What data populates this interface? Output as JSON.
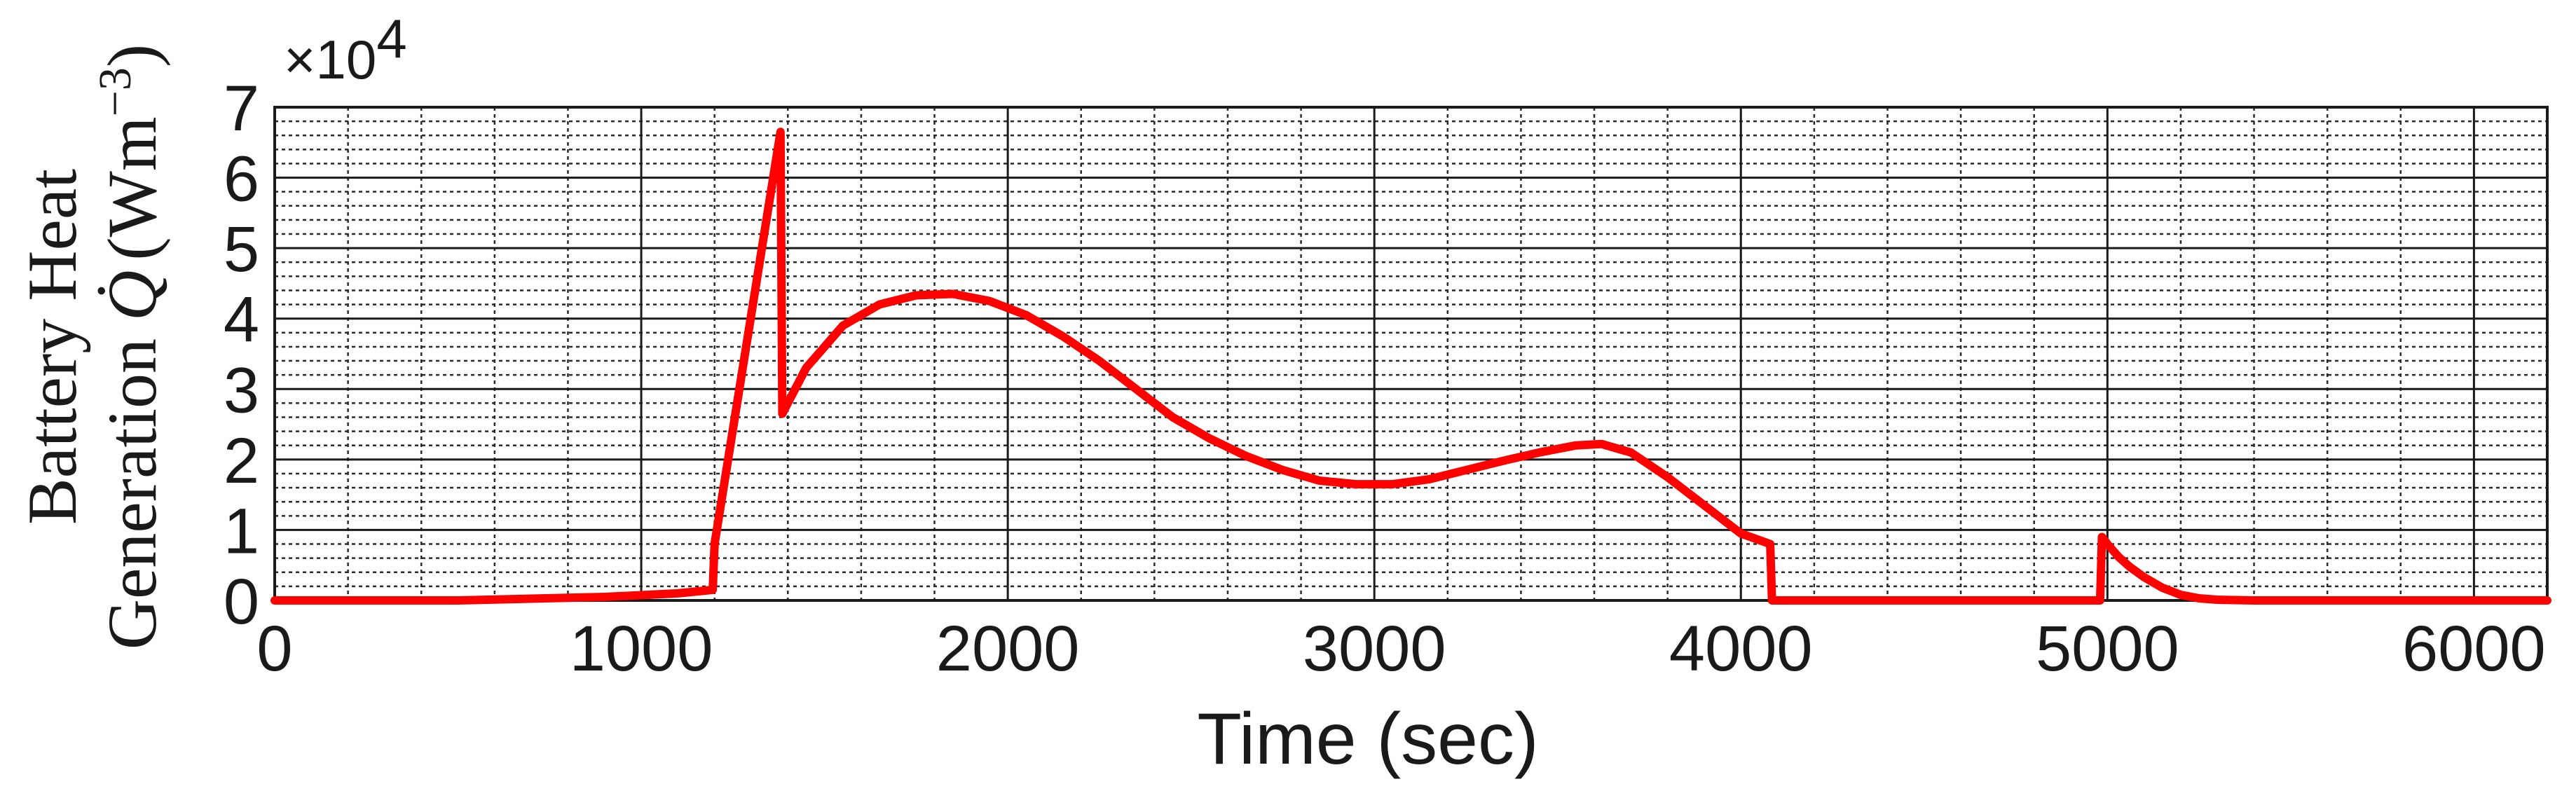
{
  "chart_data": {
    "type": "line",
    "title": "",
    "xlabel": "Time (sec)",
    "ylabel": {
      "line1": "Battery Heat",
      "line2_prefix": "Generation ",
      "line2_unit": "(Wm",
      "line2_unit_exp": "−3",
      "line2_unit_close": ")"
    },
    "y_multiplier": {
      "base": "×10",
      "exp": "4"
    },
    "xlim": [
      0,
      6200
    ],
    "ylim": [
      0,
      7
    ],
    "xticks": [
      0,
      1000,
      2000,
      3000,
      4000,
      5000,
      6000
    ],
    "yticks": [
      0,
      1,
      2,
      3,
      4,
      5,
      6,
      7
    ],
    "grid": true,
    "legend": "none",
    "line_color": "#ff0000",
    "series": [
      {
        "x": [
          0,
          500,
          900,
          1100,
          1195,
          1200,
          1380,
          1385,
          1450,
          1550,
          1650,
          1750,
          1850,
          1950,
          2050,
          2150,
          2250,
          2350,
          2450,
          2550,
          2650,
          2750,
          2850,
          2950,
          3050,
          3150,
          3250,
          3350,
          3450,
          3550,
          3620,
          3700,
          3800,
          3900,
          4000,
          4080,
          4085,
          4500,
          4980,
          4985,
          5000,
          5030,
          5060,
          5100,
          5150,
          5200,
          5250,
          5300,
          5400,
          6200
        ],
        "y": [
          0,
          0,
          0.05,
          0.1,
          0.15,
          0.8,
          6.65,
          2.65,
          3.3,
          3.9,
          4.2,
          4.33,
          4.35,
          4.25,
          4.05,
          3.75,
          3.4,
          3.0,
          2.6,
          2.3,
          2.05,
          1.85,
          1.7,
          1.65,
          1.65,
          1.72,
          1.85,
          1.98,
          2.1,
          2.2,
          2.22,
          2.1,
          1.75,
          1.35,
          0.95,
          0.8,
          0,
          0,
          0,
          0.9,
          0.8,
          0.62,
          0.48,
          0.33,
          0.18,
          0.08,
          0.03,
          0.01,
          0,
          0
        ]
      }
    ]
  }
}
